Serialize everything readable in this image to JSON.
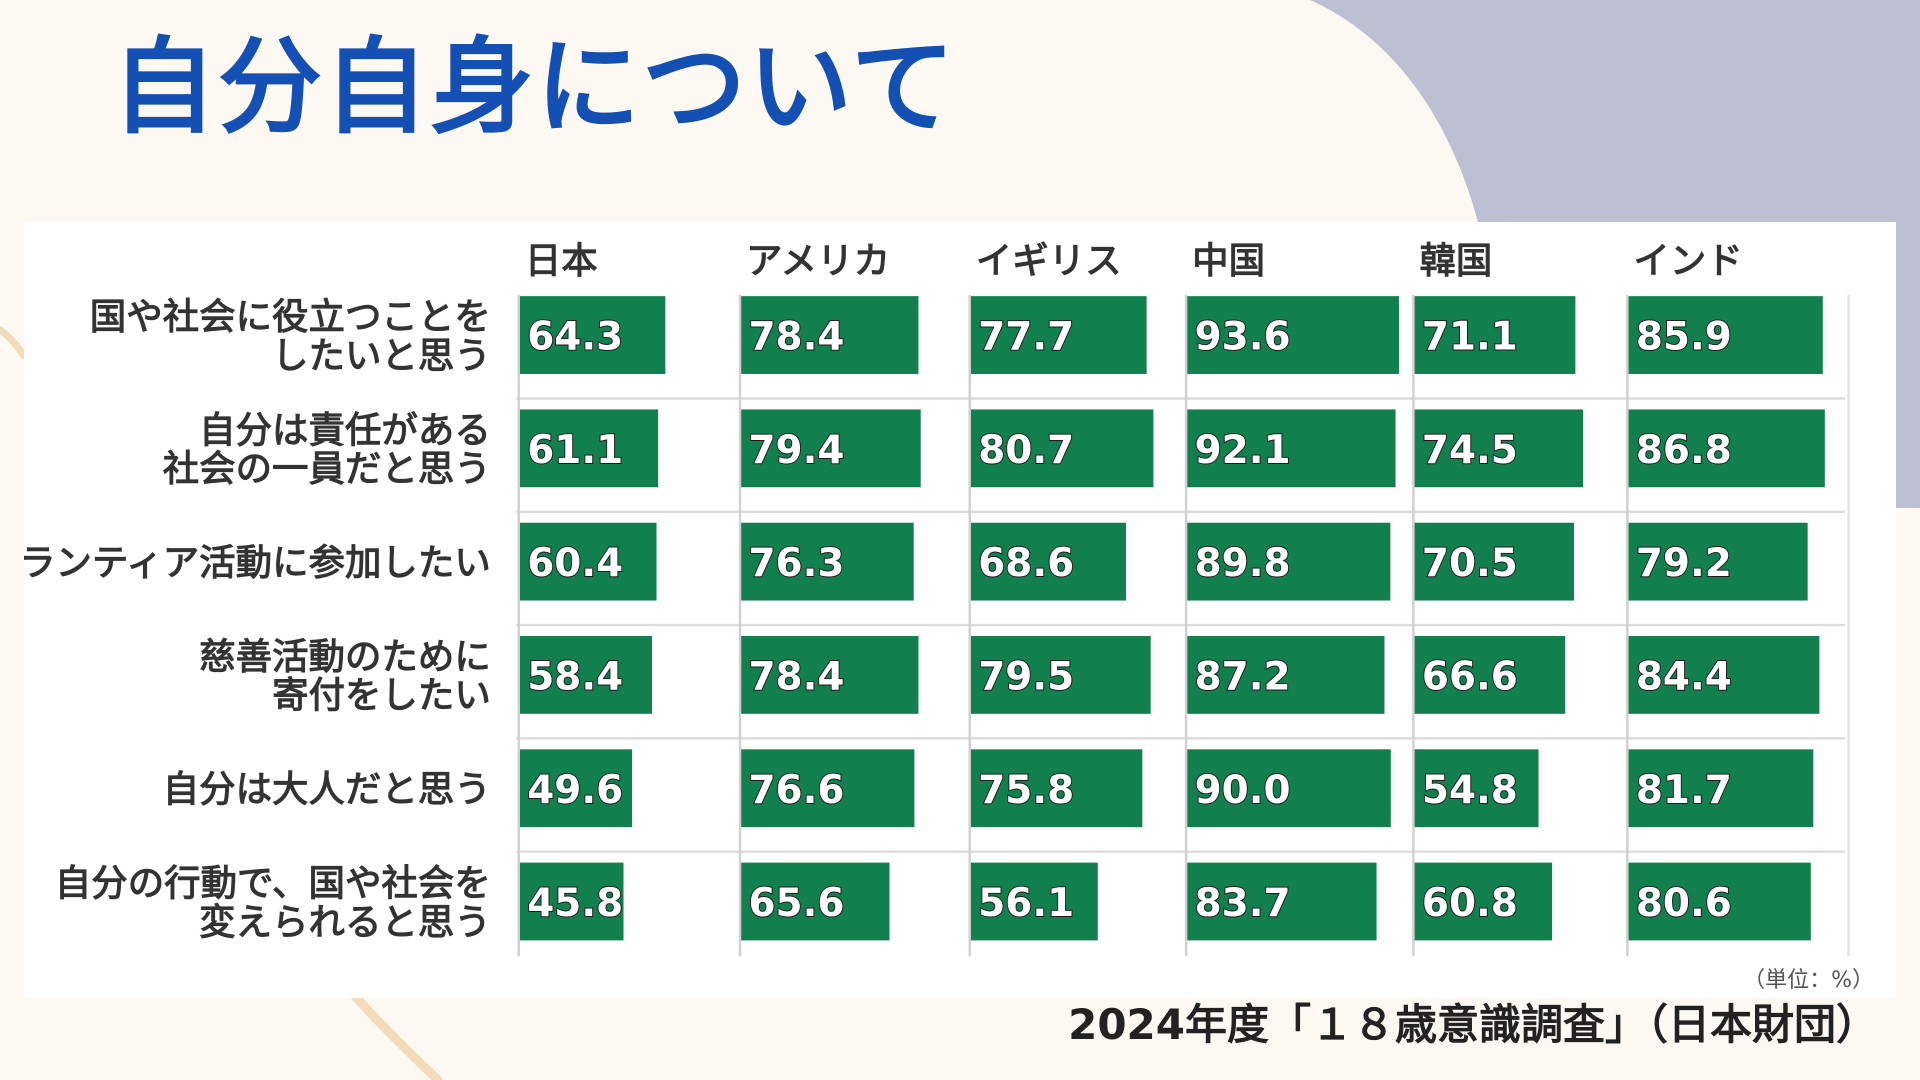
{
  "page": {
    "title": "自分自身について",
    "source": "2024年度「１８歳意識調査」（日本財団）",
    "unit": "（単位：%）",
    "colors": {
      "background": "#fdf9f2",
      "title": "#1450b4",
      "bar": "#117f4e",
      "blob": "#bcc0d2",
      "deco_line": "#f1dcbc"
    }
  },
  "chart_data": {
    "type": "bar",
    "orientation": "horizontal",
    "layout": "small multiples by country",
    "unit": "%",
    "xlim": [
      0,
      100
    ],
    "grid": false,
    "legend": "none",
    "countries": [
      "日本",
      "アメリカ",
      "イギリス",
      "中国",
      "韓国",
      "インド"
    ],
    "categories": [
      [
        "国や社会に役立つことを",
        "したいと思う"
      ],
      [
        "自分は責任がある",
        "社会の一員だと思う"
      ],
      [
        "ボランティア活動に参加したい"
      ],
      [
        "慈善活動のために",
        "寄付をしたい"
      ],
      [
        "自分は大人だと思う"
      ],
      [
        "自分の行動で、国や社会を",
        "変えられると思う"
      ]
    ],
    "series": [
      {
        "name": "日本",
        "values": [
          64.3,
          61.1,
          60.4,
          58.4,
          49.6,
          45.8
        ]
      },
      {
        "name": "アメリカ",
        "values": [
          78.4,
          79.4,
          76.3,
          78.4,
          76.6,
          65.6
        ]
      },
      {
        "name": "イギリス",
        "values": [
          77.7,
          80.7,
          68.6,
          79.5,
          75.8,
          56.1
        ]
      },
      {
        "name": "中国",
        "values": [
          93.6,
          92.1,
          89.8,
          87.2,
          90.0,
          83.7
        ]
      },
      {
        "name": "韓国",
        "values": [
          71.1,
          74.5,
          70.5,
          66.6,
          54.8,
          60.8
        ]
      },
      {
        "name": "インド",
        "values": [
          85.9,
          86.8,
          79.2,
          84.4,
          81.7,
          80.6
        ]
      }
    ]
  }
}
